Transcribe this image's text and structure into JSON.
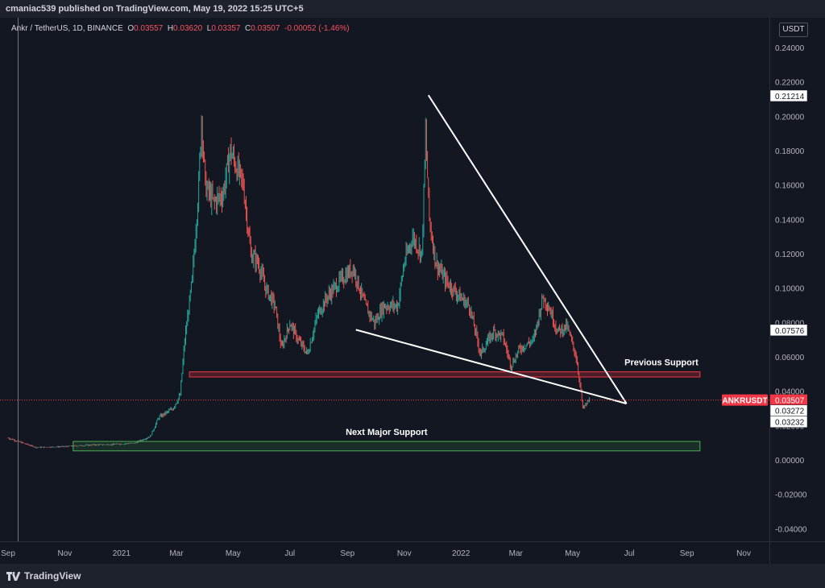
{
  "header": {
    "publisher": "cmaniac539 published on TradingView.com, May 19, 2022 15:25 UTC+5"
  },
  "legend": {
    "symbol": "Ankr / TetherUS, 1D, BINANCE",
    "o_label": "O",
    "o": "0.03557",
    "h_label": "H",
    "h": "0.03620",
    "l_label": "L",
    "l": "0.03357",
    "c_label": "C",
    "c": "0.03507",
    "change": "-0.00052 (-1.46%)"
  },
  "currency": "USDT",
  "brand": "TradingView",
  "colors": {
    "up": "#26a69a",
    "down": "#ef5350",
    "background": "#131722",
    "panel": "#1e222d",
    "price_tag": "#f23645"
  },
  "chart_data": {
    "type": "candlestick",
    "symbol": "ANKRUSDT",
    "interval": "1D",
    "ylim": [
      -0.045,
      0.245
    ],
    "y_ticks": [
      "0.24000",
      "0.22000",
      "0.20000",
      "0.18000",
      "0.16000",
      "0.14000",
      "0.12000",
      "0.10000",
      "0.08000",
      "0.06000",
      "0.04000",
      "0.02000",
      "0.00000",
      "-0.02000",
      "-0.04000"
    ],
    "x_ticks": [
      "Sep",
      "Nov",
      "2021",
      "Mar",
      "May",
      "Jul",
      "Sep",
      "Nov",
      "2022",
      "Mar",
      "May",
      "Jul",
      "Sep",
      "Nov"
    ],
    "x_range": [
      "2020-09-01",
      "2022-11-20"
    ],
    "price_path": [
      [
        "2020-09-01",
        0.013
      ],
      [
        "2020-10-01",
        0.0075
      ],
      [
        "2020-11-01",
        0.008
      ],
      [
        "2020-12-01",
        0.009
      ],
      [
        "2020-12-20",
        0.0092
      ],
      [
        "2021-01-15",
        0.01
      ],
      [
        "2021-02-01",
        0.014
      ],
      [
        "2021-02-10",
        0.025
      ],
      [
        "2021-02-25",
        0.03
      ],
      [
        "2021-03-05",
        0.038
      ],
      [
        "2021-03-10",
        0.07
      ],
      [
        "2021-03-18",
        0.105
      ],
      [
        "2021-03-25",
        0.16
      ],
      [
        "2021-03-28",
        0.2
      ],
      [
        "2021-04-01",
        0.16
      ],
      [
        "2021-04-10",
        0.15
      ],
      [
        "2021-04-20",
        0.155
      ],
      [
        "2021-04-28",
        0.18
      ],
      [
        "2021-05-05",
        0.17
      ],
      [
        "2021-05-12",
        0.16
      ],
      [
        "2021-05-20",
        0.12
      ],
      [
        "2021-05-28",
        0.115
      ],
      [
        "2021-06-05",
        0.1
      ],
      [
        "2021-06-15",
        0.09
      ],
      [
        "2021-06-22",
        0.065
      ],
      [
        "2021-07-01",
        0.08
      ],
      [
        "2021-07-10",
        0.07
      ],
      [
        "2021-07-20",
        0.062
      ],
      [
        "2021-07-31",
        0.085
      ],
      [
        "2021-08-10",
        0.095
      ],
      [
        "2021-08-25",
        0.105
      ],
      [
        "2021-09-07",
        0.112
      ],
      [
        "2021-09-20",
        0.09
      ],
      [
        "2021-09-30",
        0.08
      ],
      [
        "2021-10-10",
        0.09
      ],
      [
        "2021-10-25",
        0.09
      ],
      [
        "2021-11-01",
        0.115
      ],
      [
        "2021-11-10",
        0.13
      ],
      [
        "2021-11-20",
        0.12
      ],
      [
        "2021-11-24",
        0.19
      ],
      [
        "2021-11-28",
        0.14
      ],
      [
        "2021-12-05",
        0.115
      ],
      [
        "2021-12-15",
        0.105
      ],
      [
        "2021-12-31",
        0.095
      ],
      [
        "2022-01-10",
        0.09
      ],
      [
        "2022-01-22",
        0.062
      ],
      [
        "2022-02-05",
        0.075
      ],
      [
        "2022-02-15",
        0.072
      ],
      [
        "2022-02-24",
        0.055
      ],
      [
        "2022-03-05",
        0.065
      ],
      [
        "2022-03-20",
        0.07
      ],
      [
        "2022-03-30",
        0.095
      ],
      [
        "2022-04-05",
        0.09
      ],
      [
        "2022-04-15",
        0.075
      ],
      [
        "2022-04-25",
        0.078
      ],
      [
        "2022-05-05",
        0.06
      ],
      [
        "2022-05-10",
        0.04
      ],
      [
        "2022-05-12",
        0.03
      ],
      [
        "2022-05-19",
        0.0351
      ]
    ],
    "price_labels": [
      {
        "text": "0.21214",
        "value": 0.21214
      },
      {
        "text": "0.07576",
        "value": 0.07576
      },
      {
        "text": "0.03272",
        "value": 0.03272
      },
      {
        "text": "0.03232",
        "value": 0.03232
      }
    ],
    "last_price": {
      "symbol": "ANKRUSDT",
      "text": "0.03507",
      "value": 0.03507
    },
    "annotations": {
      "previous_support": {
        "label": "Previous Support",
        "x0": "2021-03-15",
        "x1": "2022-09-15",
        "y0": 0.0485,
        "y1": 0.0515
      },
      "next_major_support": {
        "label": "Next Major Support",
        "x0": "2020-11-10",
        "x1": "2022-09-15",
        "y0": 0.0055,
        "y1": 0.011
      },
      "upper_trendline": {
        "from": [
          "2021-11-27",
          0.2125
        ],
        "to": [
          "2022-06-28",
          0.033
        ]
      },
      "lower_trendline": {
        "from": [
          "2021-09-10",
          0.076
        ],
        "to": [
          "2022-06-28",
          0.033
        ]
      }
    }
  }
}
